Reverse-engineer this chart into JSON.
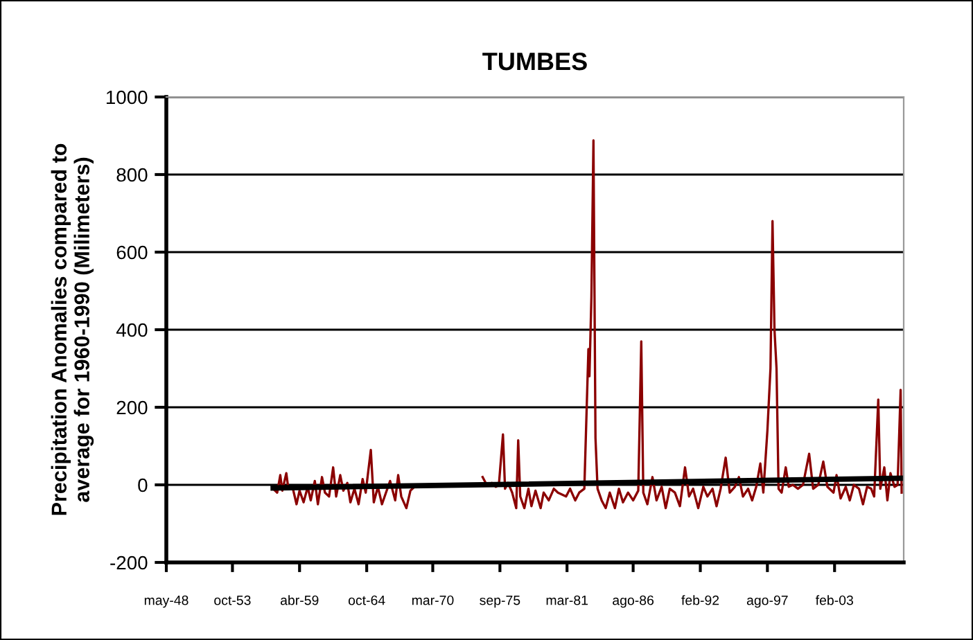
{
  "chart_data": {
    "type": "line",
    "title": "TUMBES",
    "ylabel": "Precipitation Anomalies compared to\naverage for 1960-1990 (Milimeters)",
    "xlim": [
      "1948-05",
      "2008-10"
    ],
    "xticks": [
      {
        "value": "1948-05",
        "label": "may-48"
      },
      {
        "value": "1953-10",
        "label": "oct-53"
      },
      {
        "value": "1959-04",
        "label": "abr-59"
      },
      {
        "value": "1964-10",
        "label": "oct-64"
      },
      {
        "value": "1970-03",
        "label": "mar-70"
      },
      {
        "value": "1975-09",
        "label": "sep-75"
      },
      {
        "value": "1981-03",
        "label": "mar-81"
      },
      {
        "value": "1986-08",
        "label": "ago-86"
      },
      {
        "value": "1992-02",
        "label": "feb-92"
      },
      {
        "value": "1997-08",
        "label": "ago-97"
      },
      {
        "value": "2003-02",
        "label": "feb-03"
      }
    ],
    "ylim": [
      -200,
      1000
    ],
    "yticks": [
      -200,
      0,
      200,
      400,
      600,
      800,
      1000
    ],
    "grid": "y",
    "legend": false,
    "series": [
      {
        "color": "#8b0000",
        "x": [
          "1957-02",
          "1957-06",
          "1957-09",
          "1957-11",
          "1958-03",
          "1958-05",
          "1958-09",
          "1959-01",
          "1959-04",
          "1959-08",
          "1959-12",
          "1960-03",
          "1960-07",
          "1960-10",
          "1961-02",
          "1961-05",
          "1961-09",
          "1962-01",
          "1962-04",
          "1962-08",
          "1962-11",
          "1963-03",
          "1963-06",
          "1963-10",
          "1964-02",
          "1964-06",
          "1964-09",
          "1965-02",
          "1965-05",
          "1965-09",
          "1966-01",
          "1966-05",
          "1966-09",
          "1967-02",
          "1967-05",
          "1967-08",
          "1968-01",
          "1968-05",
          "1968-09",
          "1971-01",
          "1974-04",
          "1974-08",
          "1975-01",
          "1975-05",
          "1975-08",
          "1975-12",
          "1976-02",
          "1976-05",
          "1976-09",
          "1977-01",
          "1977-03",
          "1977-05",
          "1977-09",
          "1978-01",
          "1978-04",
          "1978-08",
          "1979-01",
          "1979-04",
          "1979-09",
          "1980-02",
          "1980-06",
          "1981-02",
          "1981-06",
          "1981-11",
          "1982-03",
          "1982-08",
          "1982-12",
          "1983-01",
          "1983-03",
          "1983-05",
          "1983-07",
          "1983-09",
          "1984-01",
          "1984-05",
          "1984-09",
          "1985-02",
          "1985-06",
          "1985-10",
          "1986-03",
          "1986-08",
          "1987-01",
          "1987-04",
          "1987-06",
          "1987-10",
          "1988-03",
          "1988-07",
          "1988-12",
          "1989-04",
          "1989-08",
          "1990-01",
          "1990-06",
          "1990-11",
          "1991-03",
          "1991-07",
          "1991-12",
          "1992-05",
          "1992-09",
          "1993-02",
          "1993-06",
          "1993-10",
          "1994-03",
          "1994-07",
          "1994-12",
          "1995-04",
          "1995-08",
          "1996-01",
          "1996-05",
          "1996-09",
          "1997-01",
          "1997-04",
          "1997-08",
          "1997-11",
          "1998-01",
          "1998-03",
          "1998-05",
          "1998-07",
          "1998-10",
          "1999-02",
          "1999-05",
          "1999-09",
          "2000-02",
          "2000-07",
          "2001-01",
          "2001-05",
          "2001-10",
          "2002-03",
          "2002-07",
          "2003-01",
          "2003-04",
          "2003-08",
          "2004-01",
          "2004-05",
          "2004-09",
          "2005-02",
          "2005-06",
          "2005-10",
          "2006-02",
          "2006-05",
          "2006-09",
          "2006-11",
          "2007-03",
          "2007-06",
          "2007-09",
          "2008-01",
          "2008-04",
          "2008-07",
          "2008-08"
        ],
        "values": [
          -10,
          -20,
          25,
          -15,
          30,
          -10,
          -5,
          -50,
          -15,
          -45,
          -5,
          -40,
          10,
          -50,
          20,
          -20,
          -30,
          45,
          -30,
          25,
          -15,
          5,
          -45,
          -10,
          -50,
          15,
          -20,
          90,
          -45,
          -5,
          -50,
          -20,
          10,
          -40,
          25,
          -30,
          -60,
          -15,
          -5,
          null,
          20,
          0,
          5,
          -5,
          0,
          130,
          -10,
          5,
          -20,
          -60,
          115,
          -30,
          -60,
          -10,
          -55,
          -15,
          -60,
          -20,
          -40,
          -10,
          -20,
          -30,
          -10,
          -40,
          -20,
          -10,
          350,
          280,
          485,
          888,
          120,
          -10,
          -40,
          -60,
          -20,
          -60,
          -10,
          -45,
          -20,
          -40,
          -15,
          370,
          -20,
          -50,
          20,
          -40,
          -5,
          -60,
          -10,
          -20,
          -55,
          45,
          -30,
          -10,
          -60,
          -5,
          -30,
          -10,
          -55,
          -10,
          70,
          -20,
          -5,
          20,
          -30,
          -10,
          -40,
          -5,
          55,
          -20,
          140,
          300,
          680,
          400,
          300,
          -10,
          -20,
          45,
          -5,
          0,
          -10,
          0,
          80,
          -10,
          0,
          60,
          -5,
          -20,
          25,
          -35,
          -5,
          -40,
          0,
          -10,
          -50,
          -5,
          -10,
          -30,
          220,
          -10,
          45,
          -40,
          30,
          -5,
          0,
          245,
          -20
        ]
      },
      {
        "type": "line",
        "color": "#000000",
        "x": [
          "1957-02",
          "2008-08"
        ],
        "values": [
          -8,
          17
        ]
      }
    ]
  }
}
